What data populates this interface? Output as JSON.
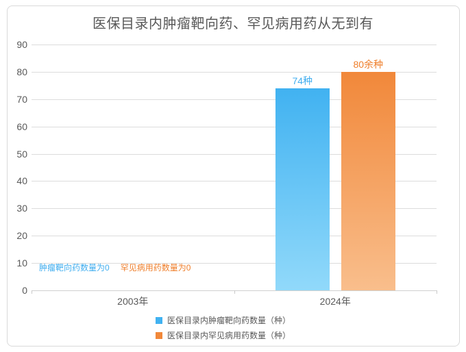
{
  "chart_data": {
    "type": "bar",
    "title": "医保目录内肿瘤靶向药、罕见病用药从无到有",
    "categories": [
      "2003年",
      "2024年"
    ],
    "series": [
      {
        "name": "医保目录内肿瘤靶向药数量（种）",
        "values": [
          0,
          74
        ],
        "data_label": "74种",
        "color_top": "#41b2f1",
        "color_bottom": "#91d9fa",
        "label_color": "#3fadef"
      },
      {
        "name": "医保目录内罕见病用药数量（种）",
        "values": [
          0,
          80
        ],
        "data_label": "80余种",
        "color_top": "#f1883a",
        "color_bottom": "#f9be8c",
        "label_color": "#ef7d28"
      }
    ],
    "annotations": [
      {
        "text": "肿瘤靶向药数量为0",
        "color": "#3fadef"
      },
      {
        "text": "罕见病用药数量为0",
        "color": "#ef7d28"
      }
    ],
    "ylim": [
      0,
      90
    ],
    "yticks": [
      0,
      10,
      20,
      30,
      40,
      50,
      60,
      70,
      80,
      90
    ],
    "grid": true,
    "legend_position": "bottom",
    "axis_text_color": "#595959",
    "grid_color": "#dcdcdc"
  }
}
